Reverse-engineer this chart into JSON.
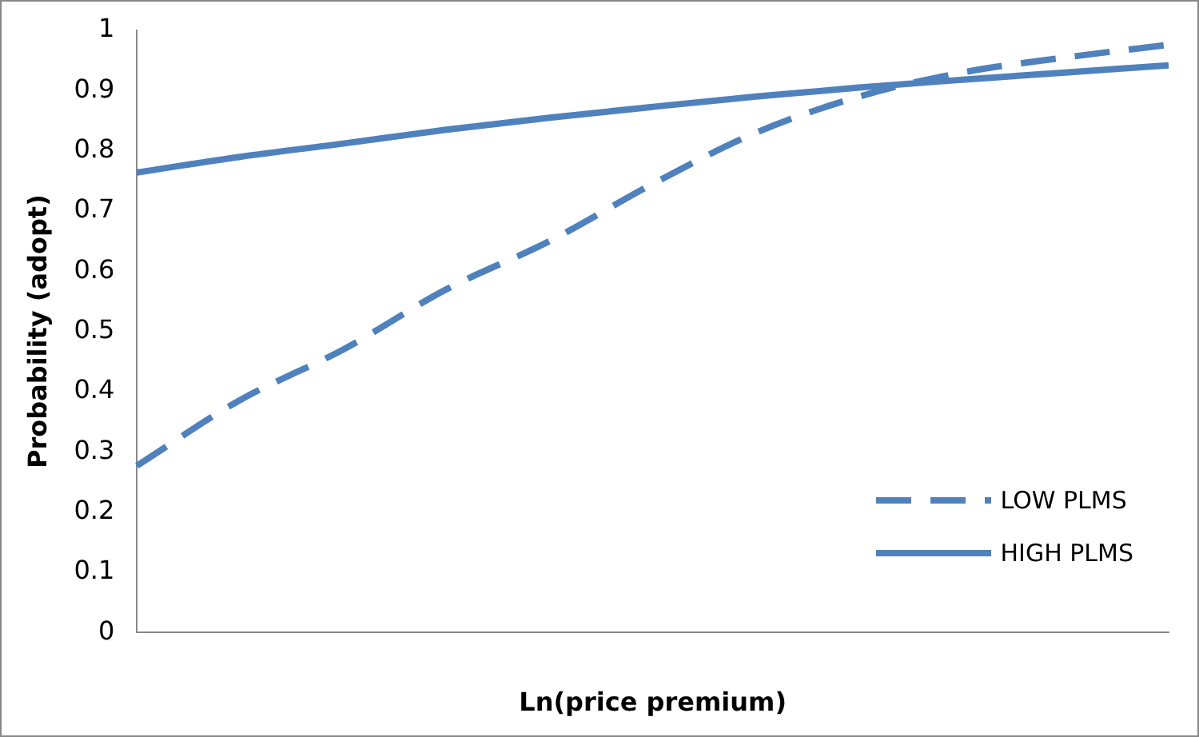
{
  "chart_data": {
    "type": "line",
    "xlabel": "Ln(price premium)",
    "ylabel": "Probability (adopt)",
    "categories": [
      null,
      null,
      null,
      null,
      null,
      null,
      null,
      null,
      null,
      null,
      null
    ],
    "series": [
      {
        "name": "LOW PLMS",
        "color": "#4f81bd",
        "line_style": "dashed",
        "values": [
          0.277,
          0.386,
          0.47,
          0.57,
          0.65,
          0.745,
          0.83,
          0.89,
          0.93,
          0.955,
          0.976
        ]
      },
      {
        "name": "HIGH PLMS",
        "color": "#4f81bd",
        "line_style": "solid",
        "values": [
          0.764,
          0.79,
          0.812,
          0.835,
          0.855,
          0.873,
          0.89,
          0.905,
          0.918,
          0.93,
          0.942
        ]
      }
    ],
    "ylim": [
      0,
      1
    ],
    "yticks": [
      0,
      0.1,
      0.2,
      0.3,
      0.4,
      0.5,
      0.6,
      0.7,
      0.8,
      0.9,
      1
    ],
    "grid": false,
    "legend": "bottom right",
    "marker": "none"
  }
}
